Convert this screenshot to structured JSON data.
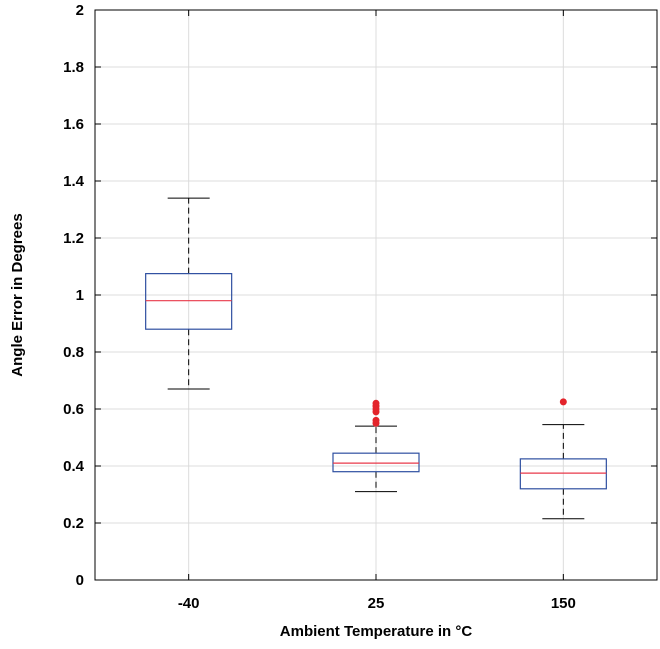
{
  "chart_data": {
    "type": "boxplot",
    "xlabel": "Ambient Temperature in °C",
    "ylabel": "Angle Error in Degrees",
    "ylim": [
      0,
      2
    ],
    "yticks": [
      "0",
      "0.2",
      "0.4",
      "0.6",
      "0.8",
      "1",
      "1.2",
      "1.4",
      "1.6",
      "1.8",
      "2"
    ],
    "grid": true,
    "categories": [
      "-40",
      "25",
      "150"
    ],
    "boxes": [
      {
        "category": "-40",
        "whisker_low": 0.67,
        "q1": 0.88,
        "median": 0.98,
        "q3": 1.075,
        "whisker_high": 1.34,
        "outliers": []
      },
      {
        "category": "25",
        "whisker_low": 0.31,
        "q1": 0.38,
        "median": 0.41,
        "q3": 0.445,
        "whisker_high": 0.54,
        "outliers": [
          0.55,
          0.56,
          0.59,
          0.6,
          0.61,
          0.62
        ]
      },
      {
        "category": "150",
        "whisker_low": 0.215,
        "q1": 0.32,
        "median": 0.375,
        "q3": 0.425,
        "whisker_high": 0.545,
        "outliers": [
          0.625
        ]
      }
    ],
    "colors": {
      "box": "#2e4fa0",
      "median": "#e8394a",
      "whisker": "#000000",
      "outlier": "#e3242b",
      "grid": "#dcdcdc"
    }
  }
}
